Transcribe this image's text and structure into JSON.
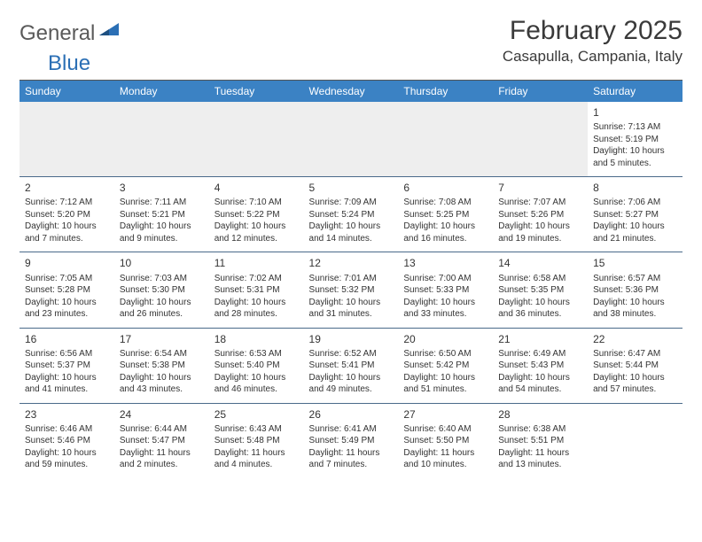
{
  "logo": {
    "general": "General",
    "blue": "Blue"
  },
  "title": "February 2025",
  "location": "Casapulla, Campania, Italy",
  "header_color": "#3b82c4",
  "header_text_color": "#ffffff",
  "border_color": "#4a6a8a",
  "text_color": "#333333",
  "days": [
    "Sunday",
    "Monday",
    "Tuesday",
    "Wednesday",
    "Thursday",
    "Friday",
    "Saturday"
  ],
  "weeks": [
    [
      null,
      null,
      null,
      null,
      null,
      null,
      {
        "n": "1",
        "sr": "Sunrise: 7:13 AM",
        "ss": "Sunset: 5:19 PM",
        "dl1": "Daylight: 10 hours",
        "dl2": "and 5 minutes."
      }
    ],
    [
      {
        "n": "2",
        "sr": "Sunrise: 7:12 AM",
        "ss": "Sunset: 5:20 PM",
        "dl1": "Daylight: 10 hours",
        "dl2": "and 7 minutes."
      },
      {
        "n": "3",
        "sr": "Sunrise: 7:11 AM",
        "ss": "Sunset: 5:21 PM",
        "dl1": "Daylight: 10 hours",
        "dl2": "and 9 minutes."
      },
      {
        "n": "4",
        "sr": "Sunrise: 7:10 AM",
        "ss": "Sunset: 5:22 PM",
        "dl1": "Daylight: 10 hours",
        "dl2": "and 12 minutes."
      },
      {
        "n": "5",
        "sr": "Sunrise: 7:09 AM",
        "ss": "Sunset: 5:24 PM",
        "dl1": "Daylight: 10 hours",
        "dl2": "and 14 minutes."
      },
      {
        "n": "6",
        "sr": "Sunrise: 7:08 AM",
        "ss": "Sunset: 5:25 PM",
        "dl1": "Daylight: 10 hours",
        "dl2": "and 16 minutes."
      },
      {
        "n": "7",
        "sr": "Sunrise: 7:07 AM",
        "ss": "Sunset: 5:26 PM",
        "dl1": "Daylight: 10 hours",
        "dl2": "and 19 minutes."
      },
      {
        "n": "8",
        "sr": "Sunrise: 7:06 AM",
        "ss": "Sunset: 5:27 PM",
        "dl1": "Daylight: 10 hours",
        "dl2": "and 21 minutes."
      }
    ],
    [
      {
        "n": "9",
        "sr": "Sunrise: 7:05 AM",
        "ss": "Sunset: 5:28 PM",
        "dl1": "Daylight: 10 hours",
        "dl2": "and 23 minutes."
      },
      {
        "n": "10",
        "sr": "Sunrise: 7:03 AM",
        "ss": "Sunset: 5:30 PM",
        "dl1": "Daylight: 10 hours",
        "dl2": "and 26 minutes."
      },
      {
        "n": "11",
        "sr": "Sunrise: 7:02 AM",
        "ss": "Sunset: 5:31 PM",
        "dl1": "Daylight: 10 hours",
        "dl2": "and 28 minutes."
      },
      {
        "n": "12",
        "sr": "Sunrise: 7:01 AM",
        "ss": "Sunset: 5:32 PM",
        "dl1": "Daylight: 10 hours",
        "dl2": "and 31 minutes."
      },
      {
        "n": "13",
        "sr": "Sunrise: 7:00 AM",
        "ss": "Sunset: 5:33 PM",
        "dl1": "Daylight: 10 hours",
        "dl2": "and 33 minutes."
      },
      {
        "n": "14",
        "sr": "Sunrise: 6:58 AM",
        "ss": "Sunset: 5:35 PM",
        "dl1": "Daylight: 10 hours",
        "dl2": "and 36 minutes."
      },
      {
        "n": "15",
        "sr": "Sunrise: 6:57 AM",
        "ss": "Sunset: 5:36 PM",
        "dl1": "Daylight: 10 hours",
        "dl2": "and 38 minutes."
      }
    ],
    [
      {
        "n": "16",
        "sr": "Sunrise: 6:56 AM",
        "ss": "Sunset: 5:37 PM",
        "dl1": "Daylight: 10 hours",
        "dl2": "and 41 minutes."
      },
      {
        "n": "17",
        "sr": "Sunrise: 6:54 AM",
        "ss": "Sunset: 5:38 PM",
        "dl1": "Daylight: 10 hours",
        "dl2": "and 43 minutes."
      },
      {
        "n": "18",
        "sr": "Sunrise: 6:53 AM",
        "ss": "Sunset: 5:40 PM",
        "dl1": "Daylight: 10 hours",
        "dl2": "and 46 minutes."
      },
      {
        "n": "19",
        "sr": "Sunrise: 6:52 AM",
        "ss": "Sunset: 5:41 PM",
        "dl1": "Daylight: 10 hours",
        "dl2": "and 49 minutes."
      },
      {
        "n": "20",
        "sr": "Sunrise: 6:50 AM",
        "ss": "Sunset: 5:42 PM",
        "dl1": "Daylight: 10 hours",
        "dl2": "and 51 minutes."
      },
      {
        "n": "21",
        "sr": "Sunrise: 6:49 AM",
        "ss": "Sunset: 5:43 PM",
        "dl1": "Daylight: 10 hours",
        "dl2": "and 54 minutes."
      },
      {
        "n": "22",
        "sr": "Sunrise: 6:47 AM",
        "ss": "Sunset: 5:44 PM",
        "dl1": "Daylight: 10 hours",
        "dl2": "and 57 minutes."
      }
    ],
    [
      {
        "n": "23",
        "sr": "Sunrise: 6:46 AM",
        "ss": "Sunset: 5:46 PM",
        "dl1": "Daylight: 10 hours",
        "dl2": "and 59 minutes."
      },
      {
        "n": "24",
        "sr": "Sunrise: 6:44 AM",
        "ss": "Sunset: 5:47 PM",
        "dl1": "Daylight: 11 hours",
        "dl2": "and 2 minutes."
      },
      {
        "n": "25",
        "sr": "Sunrise: 6:43 AM",
        "ss": "Sunset: 5:48 PM",
        "dl1": "Daylight: 11 hours",
        "dl2": "and 4 minutes."
      },
      {
        "n": "26",
        "sr": "Sunrise: 6:41 AM",
        "ss": "Sunset: 5:49 PM",
        "dl1": "Daylight: 11 hours",
        "dl2": "and 7 minutes."
      },
      {
        "n": "27",
        "sr": "Sunrise: 6:40 AM",
        "ss": "Sunset: 5:50 PM",
        "dl1": "Daylight: 11 hours",
        "dl2": "and 10 minutes."
      },
      {
        "n": "28",
        "sr": "Sunrise: 6:38 AM",
        "ss": "Sunset: 5:51 PM",
        "dl1": "Daylight: 11 hours",
        "dl2": "and 13 minutes."
      },
      null
    ]
  ]
}
